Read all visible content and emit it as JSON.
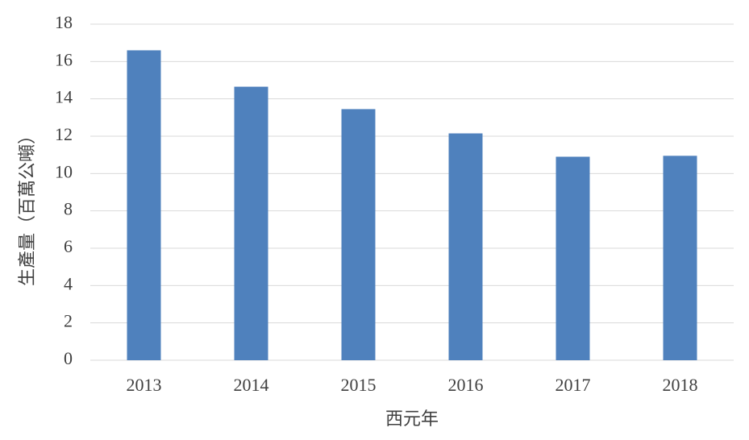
{
  "chart_data": {
    "type": "bar",
    "x_label": "西元年",
    "y_label": "生產量（百萬公噸）",
    "categories": [
      "2013",
      "2014",
      "2015",
      "2016",
      "2017",
      "2018"
    ],
    "values": [
      16.6,
      14.65,
      13.45,
      12.15,
      10.9,
      10.95
    ],
    "color": "#4f81bd",
    "ylim": [
      0,
      18
    ],
    "yticks": [
      0,
      2,
      4,
      6,
      8,
      10,
      12,
      14,
      16,
      18
    ],
    "grid": true
  }
}
